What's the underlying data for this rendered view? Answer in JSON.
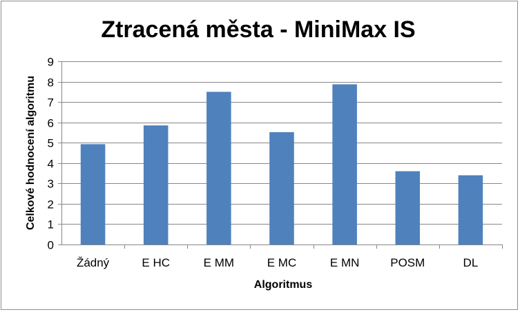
{
  "chart_data": {
    "type": "bar",
    "title": "Ztracená města - MiniMax IS",
    "xlabel": "Algoritmus",
    "ylabel": "Celkové hodnocení algoritmu",
    "categories": [
      "Žádný",
      "E HC",
      "E MM",
      "E MC",
      "E MN",
      "POSM",
      "DL"
    ],
    "values": [
      4.93,
      5.85,
      7.5,
      5.52,
      7.87,
      3.6,
      3.4
    ],
    "ylim": [
      0,
      9
    ],
    "yticks": [
      "0",
      "1",
      "2",
      "3",
      "4",
      "5",
      "6",
      "7",
      "8",
      "9"
    ],
    "grid": true,
    "legend": "none",
    "bar_color": "#4f81bd",
    "grid_color": "#868686",
    "axis_color": "#868686"
  }
}
